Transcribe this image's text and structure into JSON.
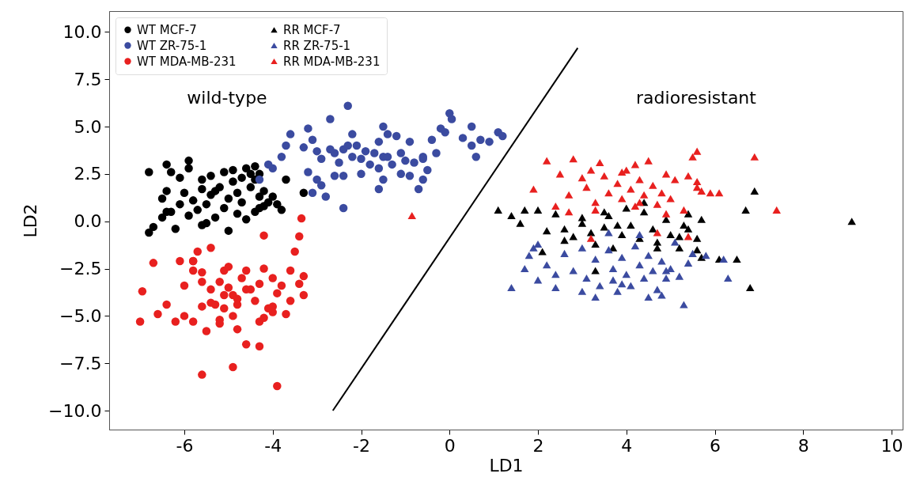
{
  "chart_data": {
    "type": "scatter",
    "xlabel": "LD1",
    "ylabel": "LD2",
    "xlim": [
      -7.7,
      10.25
    ],
    "ylim": [
      -11,
      11.1
    ],
    "xticks": [
      -6,
      -4,
      -2,
      0,
      2,
      4,
      6,
      8,
      10
    ],
    "yticks": [
      {
        "value": -10,
        "label": "−10.0"
      },
      {
        "value": -7.5,
        "label": "−7.5"
      },
      {
        "value": -5,
        "label": "−5.0"
      },
      {
        "value": -2.5,
        "label": "−2.5"
      },
      {
        "value": 0,
        "label": "0.0"
      },
      {
        "value": 2.5,
        "label": "2.5"
      },
      {
        "value": 5,
        "label": "5.0"
      },
      {
        "value": 7.5,
        "label": "7.5"
      },
      {
        "value": 10,
        "label": "10.0"
      }
    ],
    "grid": false,
    "legend": "top left",
    "annotations": [
      "wild-type",
      "radioresistant"
    ],
    "series": [
      {
        "name": "WT MCF-7",
        "color": "#000000",
        "marker": "circle",
        "x": [
          -6.8,
          -6.7,
          -6.5,
          -6.3,
          -6.2,
          -6.1,
          -6,
          -5.9,
          -5.8,
          -5.7,
          -5.6,
          -5.5,
          -5.5,
          -5.4,
          -5.3,
          -5.1,
          -5,
          -5,
          -4.9,
          -4.8,
          -4.8,
          -4.7,
          -4.6,
          -4.5,
          -4.4,
          -4.3,
          -4.3,
          -4.2,
          -4.1,
          -4,
          -3.9,
          -4.2,
          -3.8,
          -4.3,
          -5.6,
          -6.4,
          -5.3,
          -6.8,
          -6.4,
          -6.3,
          -5.9,
          -5.9,
          -6.5,
          -6.4,
          -5.6,
          -5.4,
          -5.1,
          -4.9,
          -4.6,
          -4.4,
          -4.5,
          -4.7,
          -5.2,
          -4.4,
          -3.7,
          -3.3,
          -6.1
        ],
        "values": [
          -0.6,
          -0.3,
          0.2,
          0.5,
          -0.4,
          0.9,
          1.5,
          0.3,
          1.1,
          0.6,
          1.7,
          -0.1,
          0.9,
          1.4,
          0.2,
          0.7,
          -0.5,
          1.2,
          2.1,
          0.4,
          1.5,
          1,
          0.1,
          1.8,
          2.2,
          0.7,
          1.3,
          1.6,
          1,
          1.3,
          0.9,
          0.8,
          0.6,
          2.5,
          -0.2,
          0.5,
          1.6,
          2.6,
          3,
          2.6,
          3.2,
          2.8,
          1.2,
          1.6,
          2.2,
          2.4,
          2.6,
          2.7,
          2.8,
          2.9,
          2.5,
          2.3,
          1.8,
          0.5,
          2.2,
          1.5,
          2.3
        ]
      },
      {
        "name": "WT ZR-75-1",
        "color": "#3b4ba0",
        "marker": "circle",
        "x": [
          -2.3,
          -2.7,
          -4.0,
          -4.3,
          -4.1,
          -3.8,
          -3.7,
          -3.6,
          -3.3,
          -3.2,
          -3.1,
          -3.0,
          -3.2,
          -3.0,
          -2.9,
          -2.8,
          -2.9,
          -2.6,
          -2.5,
          -2.4,
          -2.4,
          -2.2,
          -2.1,
          -2.0,
          -2.0,
          -1.9,
          -1.8,
          -1.7,
          -1.6,
          -1.5,
          -1.5,
          -1.3,
          -1.2,
          -1.1,
          -1.1,
          -1.0,
          -0.9,
          -0.8,
          -0.6,
          -0.5,
          -1.6,
          -2.4,
          -2.7,
          -1.4,
          -2.2,
          -0.9,
          -0.1,
          0,
          0.05,
          -0.2,
          0.3,
          0.5,
          0.5,
          0.7,
          1.1,
          1.2,
          0.6,
          0.9,
          -0.4,
          -0.6,
          -0.3,
          -1.5,
          -2.3,
          -3.1,
          -0.6,
          -0.7,
          -1.6,
          -1.4,
          -2.6
        ],
        "values": [
          6.1,
          5.4,
          2.8,
          2.2,
          3.0,
          3.4,
          4.0,
          4.6,
          3.9,
          4.9,
          4.3,
          3.7,
          2.6,
          2.2,
          1.9,
          1.3,
          3.3,
          3.6,
          3.1,
          3.8,
          2.4,
          3.4,
          4.0,
          3.3,
          2.5,
          3.7,
          3.0,
          3.6,
          4.2,
          3.4,
          2.2,
          3.0,
          4.5,
          2.5,
          3.6,
          3.2,
          2.4,
          3.1,
          3.4,
          2.7,
          1.7,
          0.7,
          3.8,
          4.6,
          4.6,
          4.2,
          4.7,
          5.7,
          5.4,
          4.9,
          4.4,
          5.0,
          4.0,
          4.3,
          4.7,
          4.5,
          3.4,
          4.2,
          4.3,
          3.3,
          3.6,
          5.0,
          4.0,
          1.5,
          2.2,
          1.7,
          2.8,
          3.4,
          2.4
        ]
      },
      {
        "name": "WT MDA-MB-231",
        "color": "#e8201f",
        "marker": "circle",
        "x": [
          -3.35,
          -4.2,
          -3.4,
          -3.5,
          -5.4,
          -5.7,
          -6.95,
          -5.6,
          -3.9,
          -4.3,
          -5.8,
          -5.8,
          -6.0,
          -5.6,
          -5.2,
          -5.1,
          -5.4,
          -5.0,
          -4.9,
          -4.7,
          -4.6,
          -4.4,
          -4.6,
          -4.3,
          -4.2,
          -4.0,
          -3.9,
          -4.0,
          -3.8,
          -3.6,
          -3.4,
          -3.3,
          -3.3,
          -3.6,
          -3.7,
          -5.1,
          -5.4,
          -4.8,
          -4.1,
          -5.2,
          -7.0,
          -6.7,
          -6.6,
          -6.4,
          -6.2,
          -6.0,
          -5.8,
          -5.8,
          -5.6,
          -5.5,
          -5.3,
          -5.2,
          -4.9,
          -4.8,
          -4.6,
          -4.9,
          -4.3,
          -5.0,
          -5.6,
          -5.1,
          -4.5,
          -4.8,
          -4.2,
          -4.0,
          -6.1
        ],
        "values": [
          0.15,
          -0.75,
          -0.8,
          -1.6,
          -1.4,
          -1.6,
          -3.7,
          -8.1,
          -8.7,
          -6.6,
          -2.1,
          -2.6,
          -3.4,
          -3.2,
          -3.2,
          -2.6,
          -4.3,
          -3.5,
          -3.9,
          -3.0,
          -3.6,
          -4.2,
          -2.6,
          -3.3,
          -2.5,
          -3.0,
          -3.8,
          -4.8,
          -3.4,
          -4.2,
          -3.3,
          -3.9,
          -2.9,
          -2.6,
          -4.9,
          -4.6,
          -3.6,
          -4.1,
          -4.6,
          -5.2,
          -5.3,
          -2.2,
          -4.9,
          -4.4,
          -5.3,
          -5.0,
          -2.1,
          -5.3,
          -4.5,
          -5.8,
          -4.4,
          -5.4,
          -5.0,
          -5.7,
          -6.5,
          -7.7,
          -5.3,
          -2.4,
          -2.7,
          -3.9,
          -3.6,
          -4.4,
          -5.1,
          -4.5,
          -2.1
        ]
      },
      {
        "name": "RR MCF-7",
        "color": "#000000",
        "marker": "triangle",
        "x": [
          1.1,
          1.4,
          1.6,
          2.0,
          2.2,
          2.4,
          2.6,
          2.8,
          3.0,
          3.2,
          3.3,
          3.5,
          3.6,
          3.7,
          3.9,
          4.0,
          4.1,
          4.3,
          4.4,
          4.6,
          4.7,
          4.9,
          5.0,
          5.2,
          5.3,
          5.4,
          5.6,
          5.7,
          6.1,
          6.7,
          6.9,
          2.1,
          3.3,
          4.4,
          5.2,
          3.0,
          9.1,
          6.8,
          6.5,
          5.7,
          5.6,
          1.7,
          2.6,
          3.5,
          3.8,
          4.7,
          5.4
        ],
        "values": [
          0.6,
          0.3,
          -0.1,
          0.6,
          -0.5,
          0.4,
          -0.4,
          -0.8,
          0.2,
          -0.6,
          -1.2,
          -0.3,
          0.3,
          -1.4,
          -0.7,
          0.7,
          -0.2,
          -0.9,
          0.5,
          -0.4,
          -1.1,
          0.1,
          -0.7,
          -1.4,
          -0.2,
          0.4,
          -0.9,
          -1.9,
          -2.0,
          0.6,
          1.6,
          -1.6,
          -2.6,
          1.0,
          -0.8,
          -0.1,
          0,
          -3.5,
          -2.0,
          0.1,
          -1.5,
          0.6,
          -1.0,
          0.5,
          -0.2,
          -1.4,
          -0.4
        ]
      },
      {
        "name": "RR ZR-75-1",
        "color": "#3b4ba0",
        "marker": "triangle",
        "x": [
          1.4,
          1.7,
          1.8,
          2.0,
          2.2,
          2.4,
          2.6,
          2.8,
          3.0,
          3.1,
          3.3,
          3.4,
          3.6,
          3.7,
          3.8,
          3.9,
          4.0,
          4.1,
          4.2,
          4.3,
          4.4,
          4.5,
          4.6,
          4.7,
          4.8,
          4.9,
          5.0,
          5.2,
          5.3,
          5.4,
          5.5,
          5.8,
          6.2,
          3.6,
          4.3,
          5.1,
          1.9,
          2.0,
          2.4,
          3.0,
          3.3,
          3.9,
          4.5,
          4.8,
          6.3,
          3.7,
          4.9
        ],
        "values": [
          -3.5,
          -2.5,
          -1.8,
          -3.1,
          -2.3,
          -2.8,
          -1.7,
          -2.6,
          -1.4,
          -3.0,
          -2.0,
          -3.4,
          -1.5,
          -2.5,
          -3.7,
          -1.9,
          -2.8,
          -3.4,
          -1.3,
          -2.3,
          -3.0,
          -1.8,
          -2.6,
          -3.6,
          -2.1,
          -3.0,
          -2.5,
          -2.9,
          -4.4,
          -2.2,
          -1.7,
          -1.8,
          -2.0,
          -0.6,
          -0.7,
          -1.1,
          -1.4,
          -1.2,
          -3.5,
          -3.7,
          -4.0,
          -3.3,
          -4.0,
          -3.9,
          -3.0,
          -3.1,
          -2.6
        ]
      },
      {
        "name": "RR MDA-MB-231",
        "color": "#e8201f",
        "marker": "triangle",
        "x": [
          -0.85,
          1.9,
          2.2,
          2.5,
          2.4,
          2.7,
          2.8,
          3.0,
          3.1,
          3.3,
          3.4,
          3.5,
          3.6,
          3.8,
          3.9,
          4.0,
          4.1,
          4.2,
          4.3,
          4.4,
          4.5,
          4.6,
          4.7,
          4.8,
          4.9,
          5.0,
          5.1,
          5.3,
          5.5,
          5.6,
          5.6,
          5.7,
          6.9,
          3.2,
          4.2,
          4.7,
          2.7,
          3.2,
          3.9,
          4.3,
          4.9,
          5.4,
          5.6,
          5.9,
          6.1,
          7.4,
          5.4,
          3.3
        ],
        "values": [
          0.3,
          1.7,
          3.2,
          2.5,
          0.8,
          1.4,
          3.3,
          2.3,
          1.8,
          0.6,
          3.1,
          2.4,
          1.5,
          2.0,
          1.2,
          2.7,
          1.7,
          0.8,
          2.2,
          1.4,
          3.2,
          1.9,
          0.9,
          1.5,
          2.5,
          1.2,
          2.2,
          0.6,
          3.4,
          3.7,
          2.1,
          1.6,
          3.4,
          2.7,
          3.0,
          -0.6,
          0.5,
          -0.9,
          2.6,
          1.0,
          0.4,
          -0.8,
          1.8,
          1.5,
          1.5,
          0.6,
          2.4,
          1.0
        ]
      },
      {
        "type": "line",
        "color": "#000000",
        "x": [
          -2.64,
          2.9
        ],
        "values": [
          -10,
          9.15
        ]
      }
    ]
  }
}
